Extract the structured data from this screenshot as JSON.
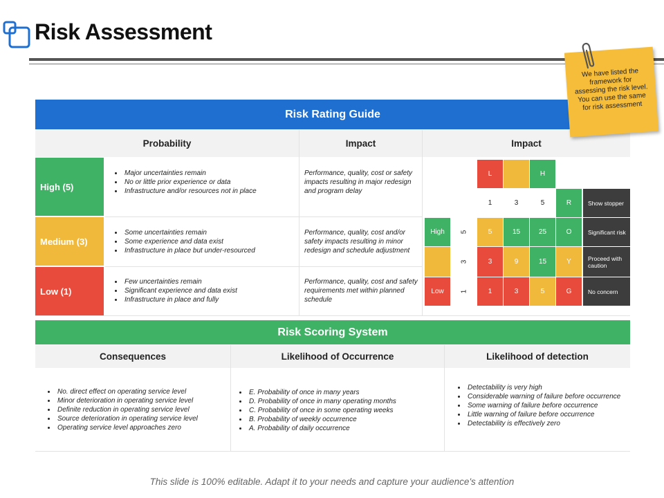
{
  "title": "Risk Assessment",
  "sticky_note": "We have listed the framework for assessing the risk level. You can use the same for risk assessment",
  "rating_guide": {
    "title": "Risk Rating Guide",
    "headers": [
      "Probability",
      "Impact",
      "Impact"
    ],
    "levels": [
      {
        "label": "High (5)",
        "color": "#3fb265",
        "probability": [
          "Major uncertainties remain",
          "No or little prior experience or data",
          "Infrastructure and/or resources not in place"
        ],
        "impact": "Performance, quality, cost or safety impacts resulting in major redesign and program delay"
      },
      {
        "label": "Medium (3)",
        "color": "#f0b93c",
        "probability": [
          "Some uncertainties remain",
          "Some experience and data exist",
          "Infrastructure in place but under-resourced"
        ],
        "impact": "Performance, quality, cost and/or safety impacts resulting in minor redesign and schedule adjustment"
      },
      {
        "label": "Low (1)",
        "color": "#e84b3c",
        "probability": [
          "Few uncertainties remain",
          "Significant experience and data exist",
          "Infrastructure in place and fully"
        ],
        "impact": "Performance, quality, cost and safety requirements met within planned schedule"
      }
    ]
  },
  "matrix": {
    "impact_labels": [
      "L",
      "",
      "H"
    ],
    "impact_scale": [
      "1",
      "3",
      "5"
    ],
    "rating_header": "R",
    "likelihood_labels": [
      "High",
      "",
      "Low"
    ],
    "likelihood_scale": [
      "5",
      "3",
      "1"
    ],
    "rows": [
      {
        "values": [
          "5",
          "15",
          "25"
        ],
        "rating": "O",
        "desc": "Significant risk"
      },
      {
        "values": [
          "3",
          "9",
          "15"
        ],
        "rating": "Y",
        "desc": "Proceed with caution"
      },
      {
        "values": [
          "1",
          "3",
          "5"
        ],
        "rating": "G",
        "desc": "No concern"
      }
    ],
    "header_desc": "Show stopper",
    "colors": {
      "red": "#e84b3c",
      "amber": "#f0b93c",
      "green": "#3fb265",
      "dark": "#3d3d3d"
    }
  },
  "scoring": {
    "title": "Risk Scoring System",
    "columns": [
      {
        "header": "Consequences",
        "items": [
          "No. direct effect on operating service level",
          "Minor deterioration in operating service level",
          "Definite reduction in operating service level",
          "Source deterioration in operating service level",
          "Operating service level approaches zero"
        ]
      },
      {
        "header": "Likelihood of Occurrence",
        "items": [
          "E. Probability of once in many years",
          "D. Probability of once in many operating months",
          "C. Probability of once in some operating weeks",
          "B. Probability of weekly occurrence",
          "A. Probability of daily occurrence"
        ]
      },
      {
        "header": "Likelihood of detection",
        "items": [
          "Detectability is very high",
          "Considerable warning of failure before occurrence",
          "Some warning of failure before occurrence",
          "Little warning of failure before occurrence",
          "Detectability is effectively zero"
        ]
      }
    ]
  },
  "footer": "This slide is 100% editable. Adapt it to your needs and capture your audience's attention",
  "colors": {
    "blue": "#1f6fd1",
    "green": "#3fb265",
    "header_bg": "#f2f2f2",
    "note": "#f5bd3a"
  }
}
